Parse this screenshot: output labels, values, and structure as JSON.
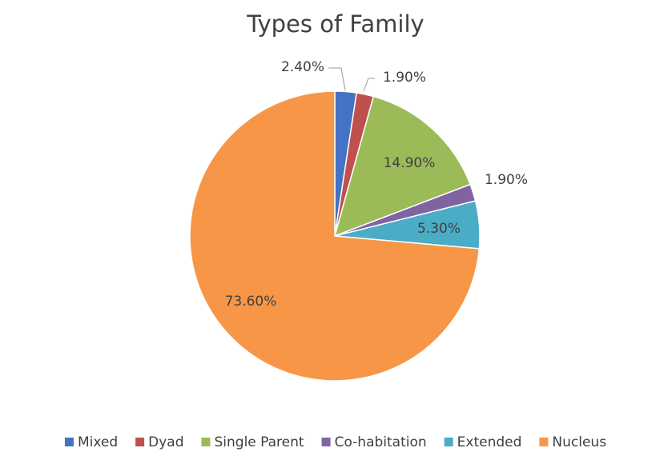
{
  "chart_data": {
    "type": "pie",
    "title": "Types of Family",
    "categories": [
      "Mixed",
      "Dyad",
      "Single Parent",
      "Co-habitation",
      "Extended",
      "Nucleus"
    ],
    "values": [
      2.4,
      1.9,
      14.9,
      1.9,
      5.3,
      73.6
    ],
    "value_labels": [
      "2.40%",
      "1.90%",
      "14.90%",
      "1.90%",
      "5.30%",
      "73.60%"
    ],
    "colors": [
      "#4472c4",
      "#c0504d",
      "#9bbb59",
      "#8064a2",
      "#4bacc6",
      "#f79646"
    ],
    "legend": "bottom"
  }
}
